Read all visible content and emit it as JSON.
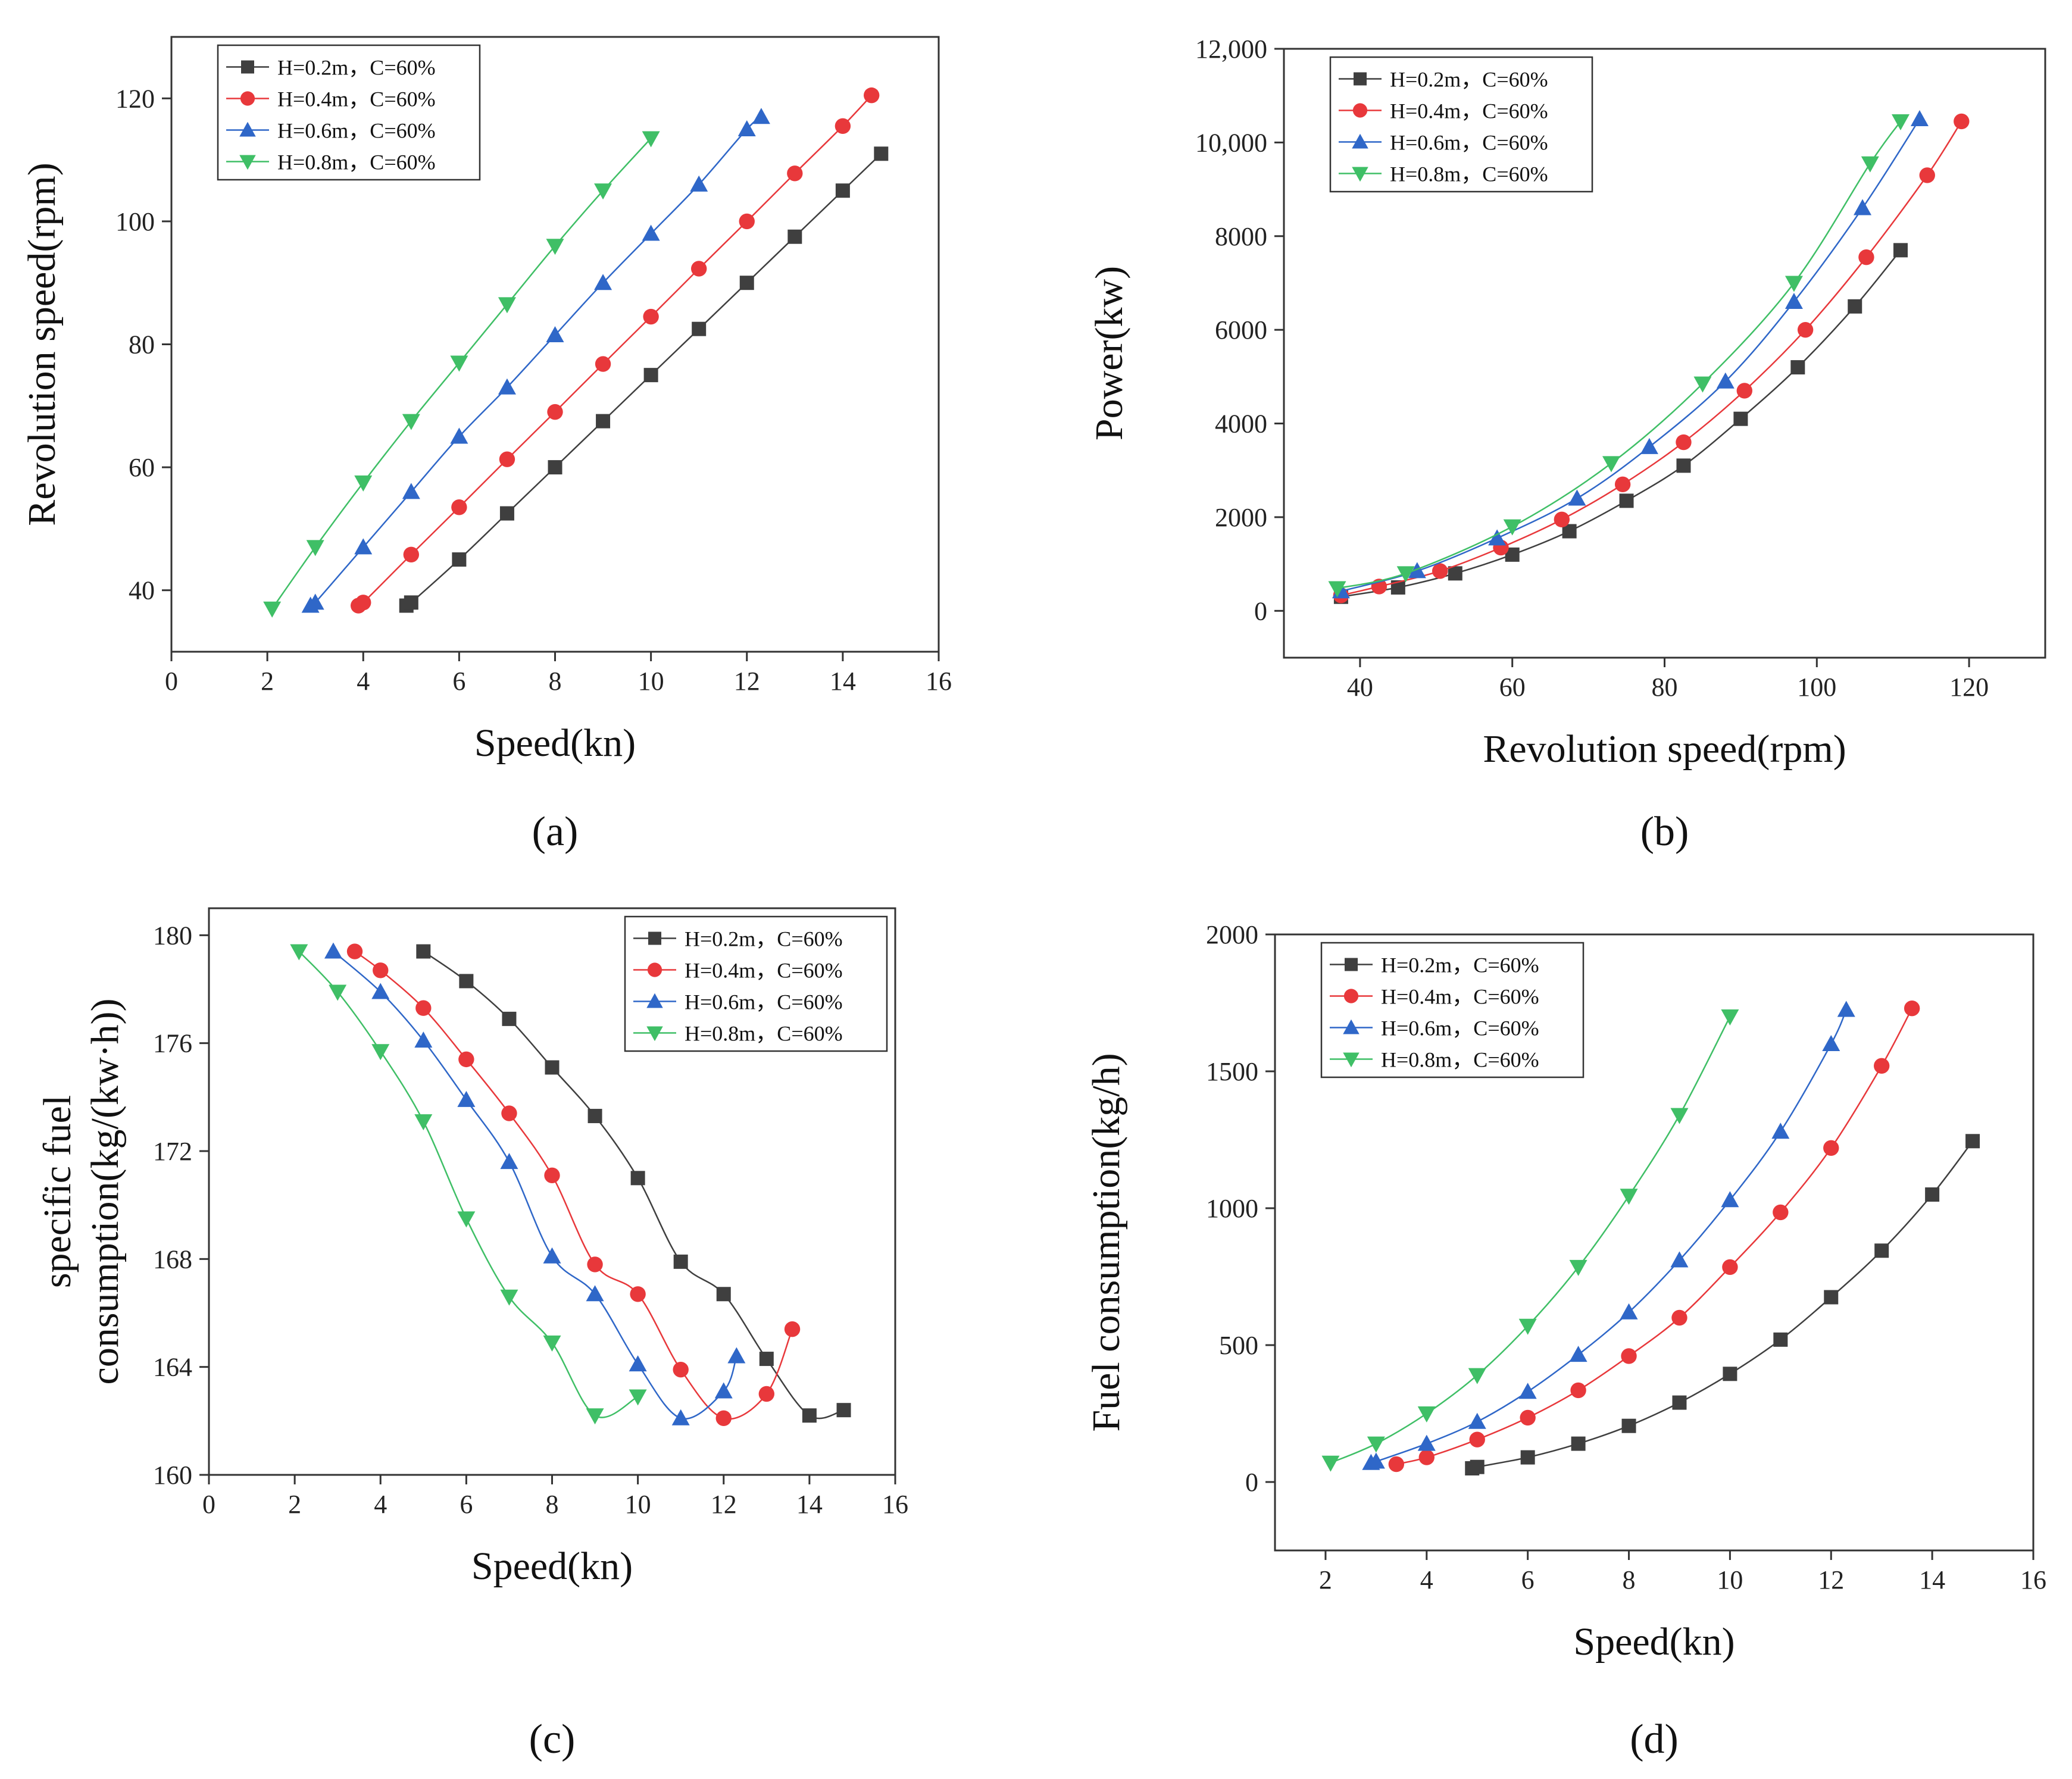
{
  "figure": {
    "panels": [
      "(a)",
      "(b)",
      "(c)",
      "(d)"
    ]
  },
  "colors": {
    "H=0.2m": "#3f3f3f",
    "H=0.4m": "#e8383b",
    "H=0.6m": "#2f67c8",
    "H=0.8m": "#3fbf66"
  },
  "chart_data": [
    {
      "id": "a",
      "type": "line",
      "panel_label": "(a)",
      "title": "",
      "xlabel": "Speed(kn)",
      "ylabel": "Revolution speed(rpm)",
      "xlim": [
        0,
        16
      ],
      "ylim": [
        30,
        130
      ],
      "xticks": [
        0,
        2,
        4,
        6,
        8,
        10,
        12,
        14,
        16
      ],
      "yticks": [
        40,
        60,
        80,
        100,
        120
      ],
      "ytick_labels": [
        "40",
        "60",
        "80",
        "100",
        "120"
      ],
      "legend_position": "top-left",
      "series": [
        {
          "name": "H=0.2m，C=60%",
          "marker": "square",
          "x": [
            4.9,
            5,
            6,
            7,
            8,
            9,
            10,
            11,
            12,
            13,
            14,
            14.8
          ],
          "y": [
            37.5,
            38,
            45,
            52.5,
            60,
            67.5,
            75,
            82.5,
            90,
            97.5,
            105,
            111
          ]
        },
        {
          "name": "H=0.4m，C=60%",
          "marker": "circle",
          "x": [
            3.9,
            4,
            5,
            6,
            7,
            8,
            9,
            10,
            11,
            12,
            13,
            14,
            14.6
          ],
          "y": [
            37.5,
            38,
            45.8,
            53.5,
            61.3,
            69,
            76.8,
            84.5,
            92.3,
            100,
            107.8,
            115.5,
            120.5
          ]
        },
        {
          "name": "H=0.6m，C=60%",
          "marker": "triangle-up",
          "x": [
            2.9,
            3,
            4,
            5,
            6,
            7,
            8,
            9,
            10,
            11,
            12,
            12.3
          ],
          "y": [
            37.5,
            38,
            47,
            56,
            65,
            73,
            81.5,
            90,
            98,
            106,
            115,
            117
          ]
        },
        {
          "name": "H=0.8m，C=60%",
          "marker": "triangle-down",
          "x": [
            2.1,
            3,
            4,
            5,
            6,
            7,
            8,
            9,
            10
          ],
          "y": [
            37,
            47,
            57.5,
            67.5,
            77,
            86.5,
            96,
            105,
            113.5
          ]
        }
      ]
    },
    {
      "id": "b",
      "type": "line",
      "panel_label": "(b)",
      "title": "",
      "xlabel": "Revolution speed(rpm)",
      "ylabel": "Power(kw)",
      "xlim": [
        30,
        130
      ],
      "ylim": [
        -1000,
        12000
      ],
      "xticks": [
        40,
        60,
        80,
        100,
        120
      ],
      "yticks": [
        0,
        2000,
        4000,
        6000,
        8000,
        10000,
        12000
      ],
      "ytick_labels": [
        "0",
        "2000",
        "4000",
        "6000",
        "8000",
        "10,000",
        "12,000"
      ],
      "legend_position": "top-left",
      "series": [
        {
          "name": "H=0.2m，C=60%",
          "marker": "square",
          "x": [
            37.5,
            45,
            52.5,
            60,
            67.5,
            75,
            82.5,
            90,
            97.5,
            105,
            111
          ],
          "y": [
            300,
            500,
            800,
            1200,
            1700,
            2350,
            3100,
            4100,
            5200,
            6500,
            7700
          ]
        },
        {
          "name": "H=0.4m，C=60%",
          "marker": "circle",
          "x": [
            37.5,
            42.5,
            50.5,
            58.5,
            66.5,
            74.5,
            82.5,
            90.5,
            98.5,
            106.5,
            114.5,
            119
          ],
          "y": [
            330,
            520,
            850,
            1350,
            1950,
            2700,
            3600,
            4700,
            6000,
            7550,
            9300,
            10450
          ]
        },
        {
          "name": "H=0.6m，C=60%",
          "marker": "triangle-up",
          "x": [
            37.5,
            47.5,
            58,
            68.5,
            78,
            88,
            97,
            106,
            113.5
          ],
          "y": [
            420,
            850,
            1550,
            2400,
            3500,
            4900,
            6600,
            8600,
            10500
          ]
        },
        {
          "name": "H=0.8m，C=60%",
          "marker": "triangle-down",
          "x": [
            37,
            46,
            60,
            73,
            85,
            97,
            107,
            111
          ],
          "y": [
            480,
            800,
            1800,
            3150,
            4850,
            7000,
            9550,
            10450
          ]
        }
      ]
    },
    {
      "id": "c",
      "type": "line",
      "panel_label": "(c)",
      "title": "",
      "xlabel": "Speed(kn)",
      "ylabel_lines": [
        "specific fuel",
        "consumption(kg/(kw·h))"
      ],
      "xlim": [
        0,
        16
      ],
      "ylim": [
        160,
        181
      ],
      "xticks": [
        0,
        2,
        4,
        6,
        8,
        10,
        12,
        14,
        16
      ],
      "yticks": [
        160,
        164,
        168,
        172,
        176,
        180
      ],
      "ytick_labels": [
        "160",
        "164",
        "168",
        "172",
        "176",
        "180"
      ],
      "legend_position": "top-right",
      "series": [
        {
          "name": "H=0.2m，C=60%",
          "marker": "square",
          "x": [
            5,
            6,
            7,
            8,
            9,
            10,
            11,
            12,
            13,
            14,
            14.8
          ],
          "y": [
            179.4,
            178.3,
            176.9,
            175.1,
            173.3,
            171,
            167.9,
            166.7,
            164.3,
            162.2,
            162.4
          ]
        },
        {
          "name": "H=0.4m，C=60%",
          "marker": "circle",
          "x": [
            3.4,
            4,
            5,
            6,
            7,
            8,
            9,
            10,
            11,
            12,
            13,
            13.6
          ],
          "y": [
            179.4,
            178.7,
            177.3,
            175.4,
            173.4,
            171.1,
            167.8,
            166.7,
            163.9,
            162.1,
            163,
            165.4
          ]
        },
        {
          "name": "H=0.6m，C=60%",
          "marker": "triangle-up",
          "x": [
            2.9,
            4,
            5,
            6,
            7,
            8,
            9,
            10,
            11,
            12,
            12.3
          ],
          "y": [
            179.4,
            177.9,
            176.1,
            173.9,
            171.6,
            168.1,
            166.7,
            164.1,
            162.1,
            163.1,
            164.4
          ]
        },
        {
          "name": "H=0.8m，C=60%",
          "marker": "triangle-down",
          "x": [
            2.1,
            3,
            4,
            5,
            6,
            7,
            8,
            9,
            10
          ],
          "y": [
            179.4,
            177.9,
            175.7,
            173.1,
            169.5,
            166.6,
            164.9,
            162.2,
            162.9
          ]
        }
      ]
    },
    {
      "id": "d",
      "type": "line",
      "panel_label": "(d)",
      "title": "",
      "xlabel": "Speed(kn)",
      "ylabel": "Fuel consumption(kg/h)",
      "xlim": [
        1,
        16
      ],
      "ylim": [
        -250,
        2000
      ],
      "xticks": [
        2,
        4,
        6,
        8,
        10,
        12,
        14,
        16
      ],
      "yticks": [
        0,
        500,
        1000,
        1500,
        2000
      ],
      "ytick_labels": [
        "0",
        "500",
        "1000",
        "1500",
        "2000"
      ],
      "legend_position": "top-left",
      "series": [
        {
          "name": "H=0.2m，C=60%",
          "marker": "square",
          "x": [
            4.9,
            5,
            6,
            7,
            8,
            9,
            10,
            11,
            12,
            13,
            14,
            14.8
          ],
          "y": [
            50,
            55,
            90,
            140,
            205,
            290,
            395,
            520,
            675,
            845,
            1050,
            1245
          ]
        },
        {
          "name": "H=0.4m，C=60%",
          "marker": "circle",
          "x": [
            3.4,
            4,
            5,
            6,
            7,
            8,
            9,
            10,
            11,
            12,
            13,
            13.6
          ],
          "y": [
            65,
            90,
            155,
            235,
            335,
            460,
            600,
            785,
            985,
            1220,
            1520,
            1730
          ]
        },
        {
          "name": "H=0.6m，C=60%",
          "marker": "triangle-up",
          "x": [
            2.9,
            3,
            4,
            5,
            6,
            7,
            8,
            9,
            10,
            11,
            12,
            12.3
          ],
          "y": [
            70,
            75,
            140,
            220,
            330,
            465,
            620,
            810,
            1030,
            1280,
            1600,
            1725
          ]
        },
        {
          "name": "H=0.8m，C=60%",
          "marker": "triangle-down",
          "x": [
            2.1,
            3,
            4,
            5,
            6,
            7,
            8,
            9,
            10
          ],
          "y": [
            70,
            140,
            250,
            390,
            570,
            785,
            1045,
            1340,
            1700
          ]
        }
      ]
    }
  ]
}
